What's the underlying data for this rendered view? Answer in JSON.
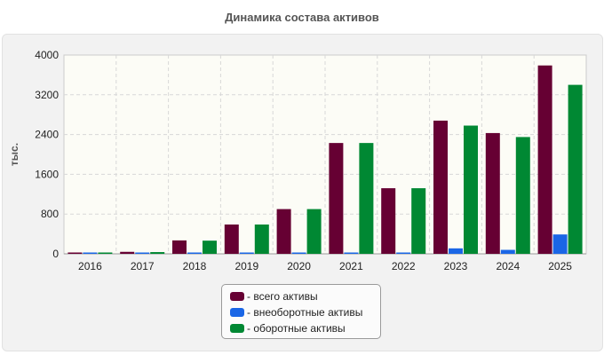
{
  "title": "Динамика состава активов",
  "chart_data": {
    "type": "bar",
    "ylabel": "тыс.",
    "xlabel": "",
    "categories": [
      "2016",
      "2017",
      "2018",
      "2019",
      "2020",
      "2021",
      "2022",
      "2023",
      "2024",
      "2025"
    ],
    "ylim": [
      0,
      4000
    ],
    "yticks": [
      0,
      800,
      1600,
      2400,
      3200,
      4000
    ],
    "grid": true,
    "legend_position": "bottom",
    "series": [
      {
        "name": "- всего активы",
        "color": "#660033",
        "values": [
          20,
          40,
          270,
          590,
          900,
          2230,
          1320,
          2680,
          2430,
          3790
        ]
      },
      {
        "name": "- внеоборотные активы",
        "color": "#1a66e6",
        "values": [
          5,
          5,
          10,
          15,
          5,
          20,
          10,
          110,
          80,
          390
        ]
      },
      {
        "name": "- оборотные активы",
        "color": "#008833",
        "values": [
          20,
          35,
          265,
          590,
          900,
          2230,
          1320,
          2580,
          2350,
          3400
        ]
      }
    ]
  }
}
